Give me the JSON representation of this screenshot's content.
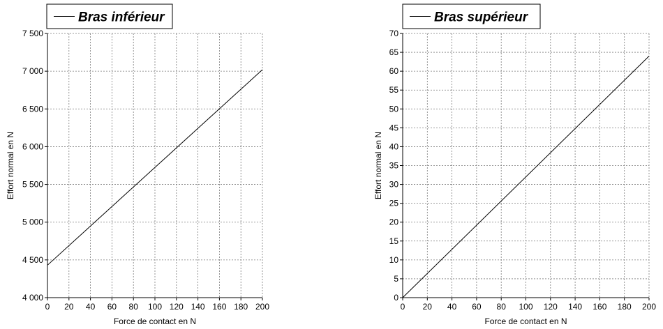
{
  "chart_data": [
    {
      "type": "line",
      "title": "",
      "xlabel": "Force de contact en N",
      "ylabel": "Effort normal en N",
      "xlim": [
        0,
        200
      ],
      "ylim": [
        4000,
        7500
      ],
      "x_ticks": [
        0,
        20,
        40,
        60,
        80,
        100,
        120,
        140,
        160,
        180,
        200
      ],
      "x_tick_labels": [
        "0",
        "20",
        "40",
        "60",
        "80",
        "100",
        "120",
        "140",
        "160",
        "180",
        "200"
      ],
      "y_ticks": [
        4000,
        4500,
        5000,
        5500,
        6000,
        6500,
        7000,
        7500
      ],
      "y_tick_labels": [
        "4 000",
        "4 500",
        "5 000",
        "5 500",
        "6 000",
        "6 500",
        "7 000",
        "7 500"
      ],
      "grid": true,
      "legend_position": "top-left",
      "series": [
        {
          "name": "Bras inférieur",
          "color": "#000000",
          "x": [
            0,
            200
          ],
          "y": [
            4430,
            7020
          ]
        }
      ]
    },
    {
      "type": "line",
      "title": "",
      "xlabel": "Force de contact en N",
      "ylabel": "Effort normal en N",
      "xlim": [
        0,
        200
      ],
      "ylim": [
        0,
        70
      ],
      "x_ticks": [
        0,
        20,
        40,
        60,
        80,
        100,
        120,
        140,
        160,
        180,
        200
      ],
      "x_tick_labels": [
        "0",
        "20",
        "40",
        "60",
        "80",
        "100",
        "120",
        "140",
        "160",
        "180",
        "200"
      ],
      "y_ticks": [
        0,
        5,
        10,
        15,
        20,
        25,
        30,
        35,
        40,
        45,
        50,
        55,
        60,
        65,
        70
      ],
      "y_tick_labels": [
        "0",
        "5",
        "10",
        "15",
        "20",
        "25",
        "30",
        "35",
        "40",
        "45",
        "50",
        "55",
        "60",
        "65",
        "70"
      ],
      "grid": true,
      "legend_position": "top-left",
      "series": [
        {
          "name": "Bras supérieur",
          "color": "#000000",
          "x": [
            0,
            200
          ],
          "y": [
            0,
            64
          ]
        }
      ]
    }
  ]
}
